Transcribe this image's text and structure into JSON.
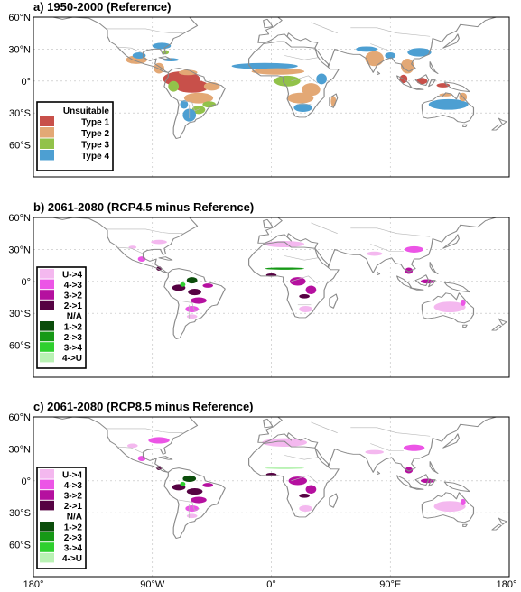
{
  "colors": {
    "type1": "#c8504a",
    "type2": "#e3a875",
    "type3": "#92c24a",
    "type4": "#4d9fd2",
    "u4": "#f4b8ef",
    "43": "#ec55e6",
    "32": "#b5109f",
    "21": "#560243",
    "12": "#0b4d0b",
    "23": "#169916",
    "34": "#2fd02f",
    "4u": "#b9f2b4"
  },
  "axes": {
    "lat_ticks": [
      "60°N",
      "30°N",
      "0°",
      "30°S",
      "60°S"
    ],
    "lon_ticks": [
      "180°",
      "90°W",
      "0°",
      "90°E",
      "180°"
    ]
  },
  "panels": [
    {
      "title": "a) 1950-2000 (Reference)",
      "legend": [
        {
          "label": "Unsuitable",
          "color": "#ffffff"
        },
        {
          "label": "Type 1",
          "color": "#c8504a"
        },
        {
          "label": "Type 2",
          "color": "#e3a875"
        },
        {
          "label": "Type 3",
          "color": "#92c24a"
        },
        {
          "label": "Type 4",
          "color": "#4d9fd2"
        }
      ],
      "patches": [
        {
          "lon": -102,
          "lat": 20,
          "w": 16,
          "h": 8,
          "c": "type2"
        },
        {
          "lon": -100,
          "lat": 24,
          "w": 10,
          "h": 6,
          "c": "type4"
        },
        {
          "lon": -83,
          "lat": 33,
          "w": 14,
          "h": 6,
          "c": "type4"
        },
        {
          "lon": -80,
          "lat": 27,
          "w": 5,
          "h": 4,
          "c": "type3"
        },
        {
          "lon": -85,
          "lat": 12,
          "w": 8,
          "h": 10,
          "c": "type2"
        },
        {
          "lon": -76,
          "lat": 20,
          "w": 12,
          "h": 3,
          "c": "type4"
        },
        {
          "lon": -68,
          "lat": 2,
          "w": 28,
          "h": 14,
          "c": "type1"
        },
        {
          "lon": -60,
          "lat": -5,
          "w": 26,
          "h": 12,
          "c": "type1"
        },
        {
          "lon": -74,
          "lat": -5,
          "w": 8,
          "h": 10,
          "c": "type3"
        },
        {
          "lon": -45,
          "lat": -5,
          "w": 12,
          "h": 8,
          "c": "type2"
        },
        {
          "lon": -55,
          "lat": -16,
          "w": 22,
          "h": 10,
          "c": "type2"
        },
        {
          "lon": -47,
          "lat": -22,
          "w": 10,
          "h": 6,
          "c": "type3"
        },
        {
          "lon": -55,
          "lat": -27,
          "w": 10,
          "h": 8,
          "c": "type3"
        },
        {
          "lon": -62,
          "lat": -32,
          "w": 10,
          "h": 12,
          "c": "type4"
        },
        {
          "lon": -66,
          "lat": -22,
          "w": 6,
          "h": 8,
          "c": "type4"
        },
        {
          "lon": -63,
          "lat": 8,
          "w": 14,
          "h": 5,
          "c": "type2"
        },
        {
          "lon": -5,
          "lat": 14,
          "w": 50,
          "h": 6,
          "c": "type4"
        },
        {
          "lon": 5,
          "lat": 9,
          "w": 40,
          "h": 6,
          "c": "type2"
        },
        {
          "lon": 12,
          "lat": 0,
          "w": 20,
          "h": 10,
          "c": "type3"
        },
        {
          "lon": 30,
          "lat": -8,
          "w": 14,
          "h": 12,
          "c": "type2"
        },
        {
          "lon": 22,
          "lat": -16,
          "w": 20,
          "h": 10,
          "c": "type2"
        },
        {
          "lon": 24,
          "lat": -25,
          "w": 14,
          "h": 8,
          "c": "type4"
        },
        {
          "lon": 38,
          "lat": 2,
          "w": 8,
          "h": 10,
          "c": "type4"
        },
        {
          "lon": 47,
          "lat": -19,
          "w": 4,
          "h": 10,
          "c": "type2"
        },
        {
          "lon": 78,
          "lat": 21,
          "w": 14,
          "h": 14,
          "c": "type2"
        },
        {
          "lon": 72,
          "lat": 30,
          "w": 16,
          "h": 5,
          "c": "type4"
        },
        {
          "lon": 90,
          "lat": 24,
          "w": 8,
          "h": 6,
          "c": "type4"
        },
        {
          "lon": 103,
          "lat": 14,
          "w": 10,
          "h": 14,
          "c": "type2"
        },
        {
          "lon": 112,
          "lat": 27,
          "w": 18,
          "h": 8,
          "c": "type4"
        },
        {
          "lon": 100,
          "lat": 2,
          "w": 6,
          "h": 8,
          "c": "type1"
        },
        {
          "lon": 114,
          "lat": 0,
          "w": 8,
          "h": 6,
          "c": "type1"
        },
        {
          "lon": 130,
          "lat": -4,
          "w": 10,
          "h": 4,
          "c": "type1"
        },
        {
          "lon": 134,
          "lat": -22,
          "w": 30,
          "h": 10,
          "c": "type4"
        },
        {
          "lon": 145,
          "lat": -15,
          "w": 6,
          "h": 8,
          "c": "type2"
        },
        {
          "lon": 132,
          "lat": -13,
          "w": 10,
          "h": 3,
          "c": "type2"
        }
      ]
    },
    {
      "title": "b) 2061-2080 (RCP4.5 minus Reference)",
      "legend": [
        {
          "label": "U->4",
          "color": "#f4b8ef"
        },
        {
          "label": "4->3",
          "color": "#ec55e6"
        },
        {
          "label": "3->2",
          "color": "#b5109f"
        },
        {
          "label": "2->1",
          "color": "#560243"
        },
        {
          "label": "N/A",
          "color": "#ffffff"
        },
        {
          "label": "1->2",
          "color": "#0b4d0b"
        },
        {
          "label": "2->3",
          "color": "#169916"
        },
        {
          "label": "3->4",
          "color": "#2fd02f"
        },
        {
          "label": "4->U",
          "color": "#b9f2b4"
        }
      ],
      "patches": [
        {
          "lon": -85,
          "lat": 37,
          "w": 12,
          "h": 4,
          "c": "u4"
        },
        {
          "lon": -105,
          "lat": 32,
          "w": 6,
          "h": 3,
          "c": "u4"
        },
        {
          "lon": -98,
          "lat": 21,
          "w": 6,
          "h": 5,
          "c": "43"
        },
        {
          "lon": -85,
          "lat": 12,
          "w": 4,
          "h": 4,
          "c": "21"
        },
        {
          "lon": -60,
          "lat": 1,
          "w": 8,
          "h": 6,
          "c": "12"
        },
        {
          "lon": -70,
          "lat": -6,
          "w": 10,
          "h": 6,
          "c": "21"
        },
        {
          "lon": -58,
          "lat": -10,
          "w": 10,
          "h": 6,
          "c": "21"
        },
        {
          "lon": -48,
          "lat": -4,
          "w": 8,
          "h": 4,
          "c": "32"
        },
        {
          "lon": -55,
          "lat": -18,
          "w": 12,
          "h": 6,
          "c": "32"
        },
        {
          "lon": -60,
          "lat": -26,
          "w": 10,
          "h": 6,
          "c": "43"
        },
        {
          "lon": -60,
          "lat": -33,
          "w": 8,
          "h": 4,
          "c": "u4"
        },
        {
          "lon": -67,
          "lat": -3,
          "w": 4,
          "h": 4,
          "c": "34"
        },
        {
          "lon": 10,
          "lat": 35,
          "w": 30,
          "h": 6,
          "c": "u4"
        },
        {
          "lon": 10,
          "lat": 12,
          "w": 30,
          "h": 2,
          "c": "23"
        },
        {
          "lon": 20,
          "lat": 0,
          "w": 12,
          "h": 8,
          "c": "32"
        },
        {
          "lon": 30,
          "lat": -8,
          "w": 8,
          "h": 8,
          "c": "32"
        },
        {
          "lon": 25,
          "lat": -14,
          "w": 8,
          "h": 4,
          "c": "21"
        },
        {
          "lon": 0,
          "lat": 6,
          "w": 8,
          "h": 3,
          "c": "21"
        },
        {
          "lon": 26,
          "lat": -26,
          "w": 10,
          "h": 6,
          "c": "u4"
        },
        {
          "lon": 78,
          "lat": 26,
          "w": 12,
          "h": 4,
          "c": "u4"
        },
        {
          "lon": 108,
          "lat": 30,
          "w": 14,
          "h": 6,
          "c": "43"
        },
        {
          "lon": 104,
          "lat": 10,
          "w": 6,
          "h": 6,
          "c": "32"
        },
        {
          "lon": 118,
          "lat": 0,
          "w": 10,
          "h": 4,
          "c": "32"
        },
        {
          "lon": 135,
          "lat": -24,
          "w": 24,
          "h": 10,
          "c": "u4"
        },
        {
          "lon": 145,
          "lat": -20,
          "w": 4,
          "h": 6,
          "c": "43"
        }
      ]
    },
    {
      "title": "c) 2061-2080 (RCP8.5 minus Reference)",
      "legend": [
        {
          "label": "U->4",
          "color": "#f4b8ef"
        },
        {
          "label": "4->3",
          "color": "#ec55e6"
        },
        {
          "label": "3->2",
          "color": "#b5109f"
        },
        {
          "label": "2->1",
          "color": "#560243"
        },
        {
          "label": "N/A",
          "color": "#ffffff"
        },
        {
          "label": "1->2",
          "color": "#0b4d0b"
        },
        {
          "label": "2->3",
          "color": "#169916"
        },
        {
          "label": "3->4",
          "color": "#2fd02f"
        },
        {
          "label": "4->U",
          "color": "#b9f2b4"
        }
      ],
      "patches": [
        {
          "lon": -85,
          "lat": 38,
          "w": 16,
          "h": 6,
          "c": "43"
        },
        {
          "lon": -105,
          "lat": 33,
          "w": 8,
          "h": 4,
          "c": "u4"
        },
        {
          "lon": -98,
          "lat": 21,
          "w": 6,
          "h": 5,
          "c": "43"
        },
        {
          "lon": -85,
          "lat": 12,
          "w": 4,
          "h": 4,
          "c": "21"
        },
        {
          "lon": -62,
          "lat": 2,
          "w": 10,
          "h": 6,
          "c": "12"
        },
        {
          "lon": -70,
          "lat": -6,
          "w": 10,
          "h": 6,
          "c": "21"
        },
        {
          "lon": -58,
          "lat": -10,
          "w": 12,
          "h": 6,
          "c": "21"
        },
        {
          "lon": -48,
          "lat": -4,
          "w": 8,
          "h": 4,
          "c": "32"
        },
        {
          "lon": -55,
          "lat": -18,
          "w": 12,
          "h": 6,
          "c": "32"
        },
        {
          "lon": -60,
          "lat": -26,
          "w": 10,
          "h": 6,
          "c": "43"
        },
        {
          "lon": -60,
          "lat": -33,
          "w": 8,
          "h": 4,
          "c": "u4"
        },
        {
          "lon": -67,
          "lat": -3,
          "w": 4,
          "h": 4,
          "c": "34"
        },
        {
          "lon": 10,
          "lat": 36,
          "w": 34,
          "h": 8,
          "c": "u4"
        },
        {
          "lon": 10,
          "lat": 12,
          "w": 30,
          "h": 2,
          "c": "4u"
        },
        {
          "lon": 20,
          "lat": 0,
          "w": 14,
          "h": 8,
          "c": "32"
        },
        {
          "lon": 30,
          "lat": -8,
          "w": 8,
          "h": 8,
          "c": "32"
        },
        {
          "lon": 25,
          "lat": -14,
          "w": 8,
          "h": 4,
          "c": "21"
        },
        {
          "lon": 0,
          "lat": 6,
          "w": 8,
          "h": 3,
          "c": "21"
        },
        {
          "lon": 26,
          "lat": -26,
          "w": 10,
          "h": 6,
          "c": "u4"
        },
        {
          "lon": 78,
          "lat": 27,
          "w": 14,
          "h": 4,
          "c": "u4"
        },
        {
          "lon": 108,
          "lat": 31,
          "w": 16,
          "h": 6,
          "c": "43"
        },
        {
          "lon": 104,
          "lat": 10,
          "w": 6,
          "h": 6,
          "c": "32"
        },
        {
          "lon": 118,
          "lat": 0,
          "w": 10,
          "h": 4,
          "c": "32"
        },
        {
          "lon": 135,
          "lat": -24,
          "w": 24,
          "h": 10,
          "c": "u4"
        },
        {
          "lon": 145,
          "lat": -20,
          "w": 4,
          "h": 6,
          "c": "43"
        }
      ]
    }
  ]
}
